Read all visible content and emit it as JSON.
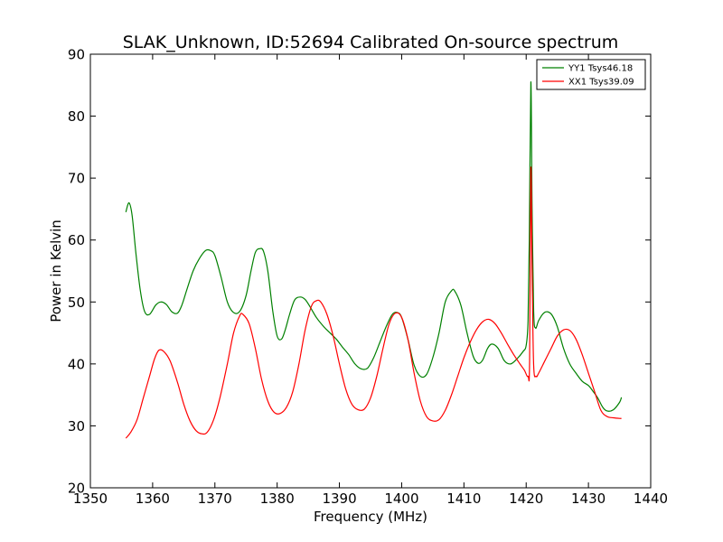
{
  "chart_data": {
    "type": "line",
    "title": "SLAK_Unknown, ID:52694 Calibrated On-source spectrum",
    "xlabel": "Frequency (MHz)",
    "ylabel": "Power in Kelvin",
    "xlim": [
      1350,
      1440
    ],
    "ylim": [
      20,
      90
    ],
    "xticks": [
      "1350",
      "1360",
      "1370",
      "1380",
      "1390",
      "1400",
      "1410",
      "1420",
      "1430",
      "1440"
    ],
    "yticks": [
      "20",
      "30",
      "40",
      "50",
      "60",
      "70",
      "80",
      "90"
    ],
    "grid": false,
    "legend_position": "top-right",
    "series": [
      {
        "name": "YY1 Tsys46.18",
        "color": "#008000",
        "x": [
          1355.7,
          1356.2,
          1356.7,
          1357.3,
          1358.0,
          1358.7,
          1359.5,
          1360.5,
          1361.3,
          1362.2,
          1363.1,
          1364.0,
          1364.7,
          1365.5,
          1366.5,
          1367.5,
          1368.5,
          1369.3,
          1370.0,
          1371.0,
          1372.0,
          1373.0,
          1374.0,
          1375.0,
          1375.8,
          1376.5,
          1377.2,
          1377.8,
          1378.5,
          1379.3,
          1380.0,
          1380.7,
          1381.3,
          1382.0,
          1382.8,
          1383.7,
          1384.5,
          1385.3,
          1386.3,
          1387.5,
          1388.5,
          1389.5,
          1390.5,
          1391.5,
          1392.5,
          1393.5,
          1394.5,
          1395.5,
          1396.5,
          1397.5,
          1398.5,
          1399.3,
          1400.0,
          1401.0,
          1402.0,
          1403.0,
          1404.0,
          1405.0,
          1406.0,
          1407.0,
          1408.0,
          1408.5,
          1409.5,
          1410.5,
          1411.5,
          1412.3,
          1413.0,
          1413.8,
          1414.5,
          1415.5,
          1416.5,
          1417.5,
          1418.5,
          1419.5,
          1420.0,
          1420.3,
          1420.5,
          1420.75,
          1420.95,
          1421.2,
          1421.5,
          1422.0,
          1422.8,
          1423.5,
          1424.2,
          1425.0,
          1426.0,
          1427.0,
          1428.0,
          1429.0,
          1430.0,
          1430.8,
          1431.5,
          1432.3,
          1433.0,
          1434.0,
          1435.0,
          1435.3
        ],
        "y": [
          64.5,
          66.0,
          64.0,
          58.0,
          52.0,
          48.5,
          48.0,
          49.5,
          50.0,
          49.6,
          48.4,
          48.2,
          49.5,
          52.0,
          55.0,
          57.0,
          58.3,
          58.3,
          57.5,
          54.0,
          50.0,
          48.3,
          48.5,
          51.0,
          55.0,
          58.0,
          58.6,
          58.2,
          55.0,
          48.5,
          44.5,
          44.0,
          45.5,
          48.0,
          50.3,
          50.8,
          50.4,
          49.2,
          47.5,
          46.0,
          45.0,
          44.0,
          42.7,
          41.5,
          40.0,
          39.2,
          39.3,
          41.0,
          43.5,
          46.0,
          48.0,
          48.3,
          47.5,
          44.0,
          39.8,
          38.0,
          38.3,
          41.0,
          45.0,
          50.0,
          51.8,
          51.8,
          49.5,
          45.0,
          41.2,
          40.1,
          40.6,
          42.5,
          43.2,
          42.5,
          40.5,
          40.0,
          40.8,
          42.0,
          43.0,
          47.0,
          60.0,
          85.5,
          65.0,
          48.5,
          45.8,
          47.0,
          48.2,
          48.4,
          47.8,
          46.0,
          42.5,
          40.0,
          38.5,
          37.2,
          36.5,
          35.5,
          34.5,
          33.0,
          32.4,
          32.6,
          33.8,
          34.6
        ]
      },
      {
        "name": "XX1 Tsys39.09",
        "color": "#ff0000",
        "x": [
          1355.7,
          1356.5,
          1357.5,
          1358.5,
          1359.5,
          1360.3,
          1361.0,
          1361.8,
          1362.8,
          1364.0,
          1365.0,
          1366.0,
          1367.0,
          1368.0,
          1368.8,
          1369.8,
          1370.8,
          1372.0,
          1373.0,
          1374.0,
          1374.5,
          1375.5,
          1376.5,
          1377.5,
          1378.5,
          1379.5,
          1380.5,
          1381.5,
          1382.5,
          1383.5,
          1384.5,
          1385.5,
          1386.3,
          1387.0,
          1388.0,
          1389.0,
          1390.0,
          1391.0,
          1392.0,
          1393.0,
          1394.0,
          1395.0,
          1396.0,
          1397.0,
          1398.0,
          1399.0,
          1400.0,
          1401.0,
          1402.0,
          1403.0,
          1404.0,
          1405.0,
          1406.0,
          1407.0,
          1408.0,
          1409.0,
          1410.0,
          1411.0,
          1412.0,
          1413.0,
          1414.0,
          1415.0,
          1416.0,
          1417.0,
          1418.0,
          1419.0,
          1419.7,
          1420.3,
          1420.55,
          1420.75,
          1420.95,
          1421.2,
          1421.6,
          1422.0,
          1423.0,
          1424.0,
          1425.0,
          1426.0,
          1427.0,
          1428.0,
          1429.0,
          1430.0,
          1431.0,
          1432.0,
          1433.0,
          1434.0,
          1435.0,
          1435.3
        ],
        "y": [
          28.0,
          29.0,
          31.0,
          34.5,
          38.0,
          40.8,
          42.2,
          42.0,
          40.5,
          37.0,
          33.5,
          30.8,
          29.2,
          28.7,
          29.0,
          31.0,
          34.5,
          40.0,
          45.0,
          47.8,
          48.0,
          46.5,
          42.5,
          37.5,
          34.0,
          32.2,
          32.0,
          33.0,
          35.5,
          40.0,
          45.5,
          49.3,
          50.2,
          50.0,
          48.0,
          44.5,
          40.0,
          36.0,
          33.5,
          32.6,
          32.7,
          34.5,
          38.0,
          42.5,
          46.5,
          48.2,
          47.5,
          44.0,
          38.5,
          34.0,
          31.5,
          30.8,
          31.0,
          32.5,
          35.0,
          38.0,
          41.0,
          43.5,
          45.5,
          46.8,
          47.2,
          46.5,
          45.0,
          43.2,
          41.5,
          40.0,
          39.0,
          38.0,
          40.5,
          71.5,
          55.0,
          39.8,
          38.0,
          38.5,
          40.5,
          42.5,
          44.5,
          45.5,
          45.4,
          44.0,
          41.5,
          38.5,
          35.5,
          32.5,
          31.5,
          31.3,
          31.2,
          31.2
        ]
      }
    ]
  }
}
